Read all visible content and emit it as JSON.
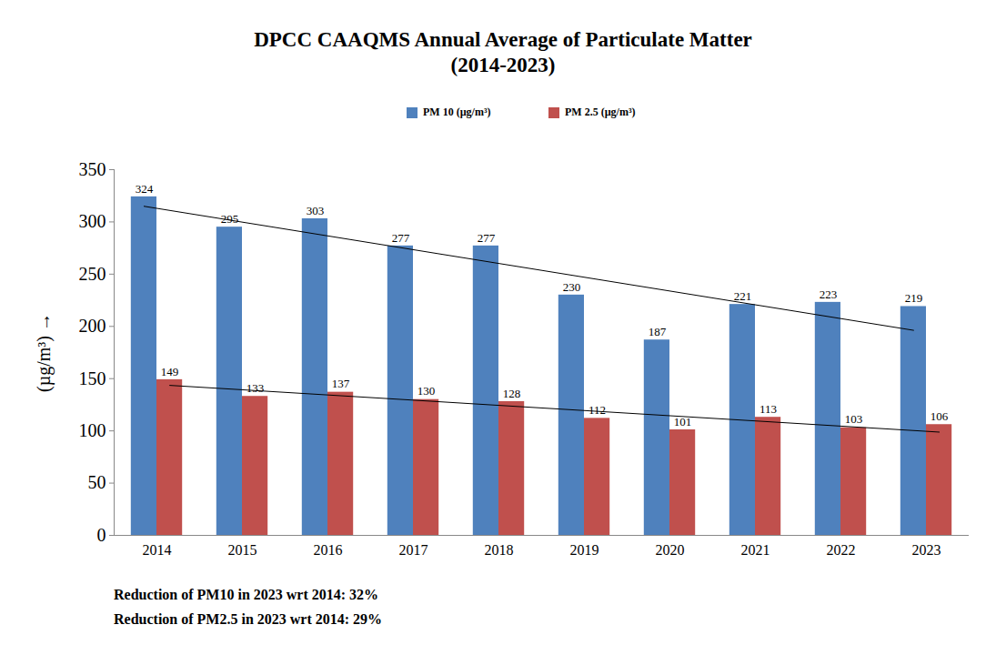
{
  "chart_data": {
    "type": "bar",
    "title": "DPCC CAAQMS Annual Average of Particulate Matter",
    "subtitle": "(2014-2023)",
    "y_label": "(µg/m³)",
    "categories": [
      "2014",
      "2015",
      "2016",
      "2017",
      "2018",
      "2019",
      "2020",
      "2021",
      "2022",
      "2023"
    ],
    "series": [
      {
        "name": "PM 10 (µg/m³)",
        "color": "#4f81bd",
        "values": [
          324,
          295,
          303,
          277,
          277,
          230,
          187,
          221,
          223,
          219
        ]
      },
      {
        "name": "PM 2.5 (µg/m³)",
        "color": "#c0504d",
        "values": [
          149,
          133,
          137,
          130,
          128,
          112,
          101,
          113,
          103,
          106
        ]
      }
    ],
    "ylim": [
      0,
      350
    ],
    "yticks": [
      0,
      50,
      100,
      150,
      200,
      250,
      300,
      350
    ],
    "grid": false,
    "legend": "top",
    "data_labels": true,
    "annotations": [
      "Reduction of PM10 in 2023 wrt 2014: 32%",
      "Reduction of PM2.5 in 2023 wrt 2014: 29%"
    ]
  }
}
